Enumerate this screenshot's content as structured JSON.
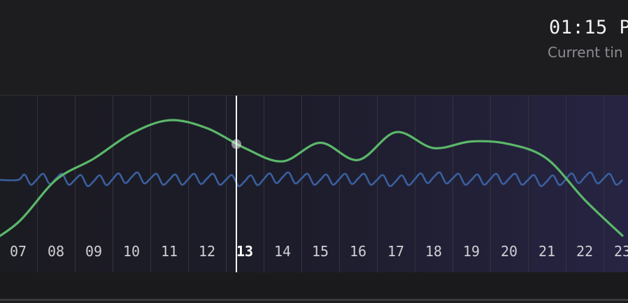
{
  "clock": {
    "time_display": "01:15 P",
    "caption": "Current tin"
  },
  "timeline": {
    "hours": [
      "07",
      "08",
      "09",
      "10",
      "11",
      "12",
      "13",
      "14",
      "15",
      "16",
      "17",
      "18",
      "19",
      "20",
      "21",
      "22",
      "23"
    ],
    "current_hour": "13",
    "current_hour_index": 6,
    "series": [
      {
        "color": "#5bb86a",
        "values": [
          0.15,
          0.47,
          0.63,
          0.82,
          0.92,
          0.86,
          0.71,
          0.61,
          0.75,
          0.62,
          0.83,
          0.71,
          0.76,
          0.74,
          0.63,
          0.32,
          0.05
        ]
      },
      {
        "color": "#3a5f9e",
        "values": [
          0.47,
          0.48,
          0.46,
          0.49,
          0.47,
          0.48,
          0.46,
          0.49,
          0.47,
          0.48,
          0.46,
          0.49,
          0.47,
          0.48,
          0.46,
          0.49,
          0.47
        ]
      }
    ],
    "colors": {
      "cursor": "#ffffff",
      "label": "#cfcfd4",
      "current_label": "#ffffff"
    }
  }
}
